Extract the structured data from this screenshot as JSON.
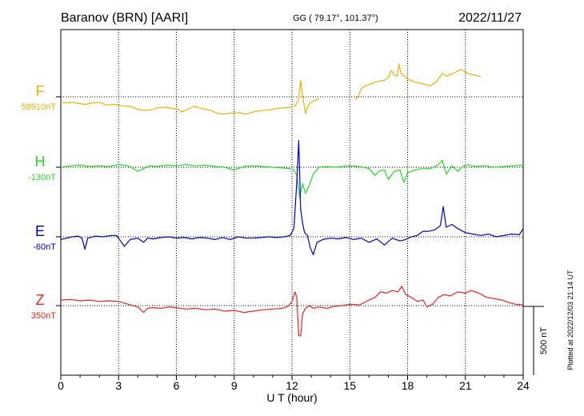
{
  "header": {
    "station": "Baranov (BRN)  [AARI]",
    "coords": "GG ( 79.17°, 101.37°)",
    "date": "2022/11/27"
  },
  "footer": {
    "xlabel": "U T (hour)",
    "plotted": "Plotted at 2022/12/03 21:14 UT",
    "scale_label": "500 nT"
  },
  "chart_data": {
    "type": "line",
    "title": "Baranov (BRN)  [AARI]",
    "xlabel": "U T (hour)",
    "xlim": [
      0,
      24
    ],
    "x_ticks": [
      0,
      3,
      6,
      9,
      12,
      15,
      18,
      21,
      24
    ],
    "grid": true,
    "scale_bar_nT": 500,
    "series": [
      {
        "name": "F",
        "baseline_label": "58910nT",
        "color": "#f0b000",
        "segments": [
          {
            "x": [
              0,
              0.3,
              0.6,
              1.0,
              1.3,
              1.6,
              2.0,
              2.4,
              2.8,
              3.2,
              3.6,
              4.0,
              4.3,
              4.7,
              5.0,
              5.4,
              5.8,
              6.1,
              6.3,
              6.6,
              6.9,
              7.2,
              7.5,
              7.8,
              8.1,
              8.4,
              8.8,
              9.2,
              9.6,
              10.0,
              10.4,
              10.8,
              11.2,
              11.6,
              12.0,
              12.2,
              12.35,
              12.45,
              12.55,
              12.7,
              12.85,
              13.0,
              13.2,
              13.4
            ],
            "y": [
              -40,
              -45,
              -40,
              -50,
              -55,
              -45,
              -40,
              -60,
              -55,
              -65,
              -70,
              -90,
              -100,
              -95,
              -80,
              -75,
              -85,
              -90,
              -110,
              -90,
              -70,
              -80,
              -90,
              -100,
              -120,
              -125,
              -120,
              -115,
              -125,
              -110,
              -100,
              -95,
              -85,
              -80,
              -75,
              -60,
              -10,
              120,
              10,
              -120,
              -60,
              -40,
              -25,
              -15
            ]
          },
          {
            "x": [
              15.3,
              15.45,
              15.6,
              15.8,
              16.0,
              16.2,
              16.4,
              16.6,
              16.8,
              17.0,
              17.15,
              17.3,
              17.45,
              17.55,
              17.65,
              17.8,
              18.0,
              18.3,
              18.6,
              18.9,
              19.2,
              19.5,
              19.8,
              20.0,
              20.2,
              20.5,
              20.8,
              21.1,
              21.4,
              21.8
            ],
            "y": [
              -20,
              10,
              60,
              80,
              90,
              100,
              110,
              115,
              120,
              140,
              190,
              160,
              150,
              240,
              170,
              155,
              130,
              110,
              100,
              90,
              80,
              110,
              170,
              150,
              160,
              180,
              200,
              170,
              160,
              145
            ]
          }
        ]
      },
      {
        "name": "H",
        "baseline_label": "-130nT",
        "color": "#22dd22",
        "segments": [
          {
            "x": [
              0,
              0.5,
              1.0,
              1.5,
              2.0,
              2.5,
              3.0,
              3.5,
              4.0,
              4.3,
              4.6,
              5.0,
              5.5,
              6.0,
              6.5,
              7.0,
              7.5,
              8.0,
              8.5,
              9.0,
              9.5,
              10.0,
              10.5,
              11.0,
              11.5,
              11.9,
              12.1,
              12.25,
              12.4,
              12.55,
              12.7,
              12.9,
              13.1,
              13.4,
              13.8,
              14.2,
              14.6,
              15.0,
              15.5,
              16.0,
              16.3,
              16.5,
              16.8,
              17.0,
              17.3,
              17.6,
              17.8,
              18.0,
              18.4,
              18.8,
              19.2,
              19.6,
              19.8,
              20.0,
              20.3,
              20.6,
              21.0,
              21.5,
              22.0,
              22.5,
              23.0,
              23.5,
              24.0
            ],
            "y": [
              0,
              10,
              15,
              5,
              10,
              5,
              20,
              10,
              -30,
              -10,
              10,
              5,
              15,
              10,
              20,
              10,
              15,
              5,
              0,
              -20,
              5,
              10,
              5,
              0,
              -5,
              -10,
              -20,
              -60,
              -220,
              -120,
              -190,
              -130,
              -50,
              0,
              5,
              0,
              5,
              10,
              5,
              -10,
              -60,
              -30,
              -20,
              -90,
              -30,
              -20,
              -110,
              -40,
              -20,
              -10,
              -10,
              20,
              50,
              -50,
              10,
              -30,
              20,
              5,
              10,
              0,
              5,
              10,
              15
            ]
          }
        ]
      },
      {
        "name": "E",
        "baseline_label": "-60nT",
        "color": "#0000cc",
        "segments": [
          {
            "x": [
              0,
              0.3,
              0.6,
              0.9,
              1.1,
              1.25,
              1.4,
              1.8,
              2.2,
              2.6,
              2.9,
              3.1,
              3.3,
              3.6,
              4.0,
              4.3,
              4.5,
              4.8,
              5.2,
              5.6,
              6.0,
              6.4,
              6.8,
              7.2,
              7.6,
              8.0,
              8.4,
              8.8,
              9.2,
              9.6,
              10.0,
              10.4,
              10.8,
              11.2,
              11.6,
              11.9,
              12.1,
              12.25,
              12.35,
              12.45,
              12.55,
              12.65,
              12.8,
              12.95,
              13.1,
              13.3,
              13.6,
              14.0,
              14.4,
              14.8,
              15.2,
              15.6,
              16.0,
              16.4,
              16.8,
              17.2,
              17.6,
              17.9,
              18.2,
              18.5,
              18.8,
              19.1,
              19.4,
              19.7,
              19.85,
              20.0,
              20.3,
              20.6,
              21.0,
              21.4,
              21.8,
              22.2,
              22.6,
              23.0,
              23.4,
              23.8,
              24.0
            ],
            "y": [
              -20,
              -10,
              0,
              5,
              -10,
              -90,
              -10,
              5,
              0,
              10,
              10,
              -30,
              -70,
              -20,
              -10,
              -40,
              -10,
              -15,
              -5,
              0,
              -10,
              -5,
              -15,
              -5,
              -10,
              -20,
              -5,
              -20,
              0,
              -10,
              -10,
              -5,
              0,
              -5,
              0,
              10,
              60,
              400,
              700,
              200,
              100,
              30,
              10,
              -80,
              -130,
              -40,
              -20,
              -10,
              -15,
              -5,
              -20,
              -10,
              -40,
              -15,
              -60,
              -10,
              -30,
              -20,
              0,
              10,
              40,
              40,
              50,
              80,
              220,
              70,
              90,
              60,
              30,
              20,
              10,
              20,
              0,
              10,
              20,
              15,
              60
            ]
          }
        ]
      },
      {
        "name": "Z",
        "baseline_label": "350nT",
        "color": "#ee2222",
        "segments": [
          {
            "x": [
              0,
              0.5,
              1.0,
              1.5,
              2.0,
              2.5,
              3.0,
              3.5,
              4.0,
              4.3,
              4.5,
              4.8,
              5.2,
              5.6,
              6.0,
              6.5,
              7.0,
              7.5,
              8.0,
              8.5,
              9.0,
              9.5,
              10.0,
              10.5,
              11.0,
              11.5,
              11.8,
              12.0,
              12.15,
              12.25,
              12.35,
              12.45,
              12.55,
              12.7,
              12.9,
              13.1,
              13.4,
              13.8,
              14.2,
              14.6,
              15.0,
              15.5,
              16.0,
              16.3,
              16.6,
              16.9,
              17.2,
              17.5,
              17.7,
              17.9,
              18.2,
              18.5,
              18.8,
              19.0,
              19.3,
              19.6,
              19.9,
              20.2,
              20.6,
              21.0,
              21.3,
              21.7,
              22.1,
              22.5,
              22.9,
              23.3,
              23.6,
              24.0
            ],
            "y": [
              40,
              45,
              35,
              40,
              30,
              35,
              30,
              10,
              -10,
              -50,
              -20,
              -15,
              -20,
              -10,
              -15,
              -25,
              -20,
              -30,
              -25,
              -40,
              -35,
              -50,
              -40,
              -30,
              -25,
              -20,
              -5,
              30,
              100,
              60,
              -220,
              -220,
              -60,
              -20,
              0,
              -20,
              -10,
              -20,
              -5,
              0,
              10,
              5,
              40,
              60,
              100,
              90,
              110,
              100,
              140,
              80,
              60,
              30,
              40,
              -10,
              10,
              60,
              80,
              70,
              100,
              90,
              110,
              90,
              60,
              50,
              40,
              20,
              10,
              5
            ]
          }
        ]
      }
    ]
  }
}
